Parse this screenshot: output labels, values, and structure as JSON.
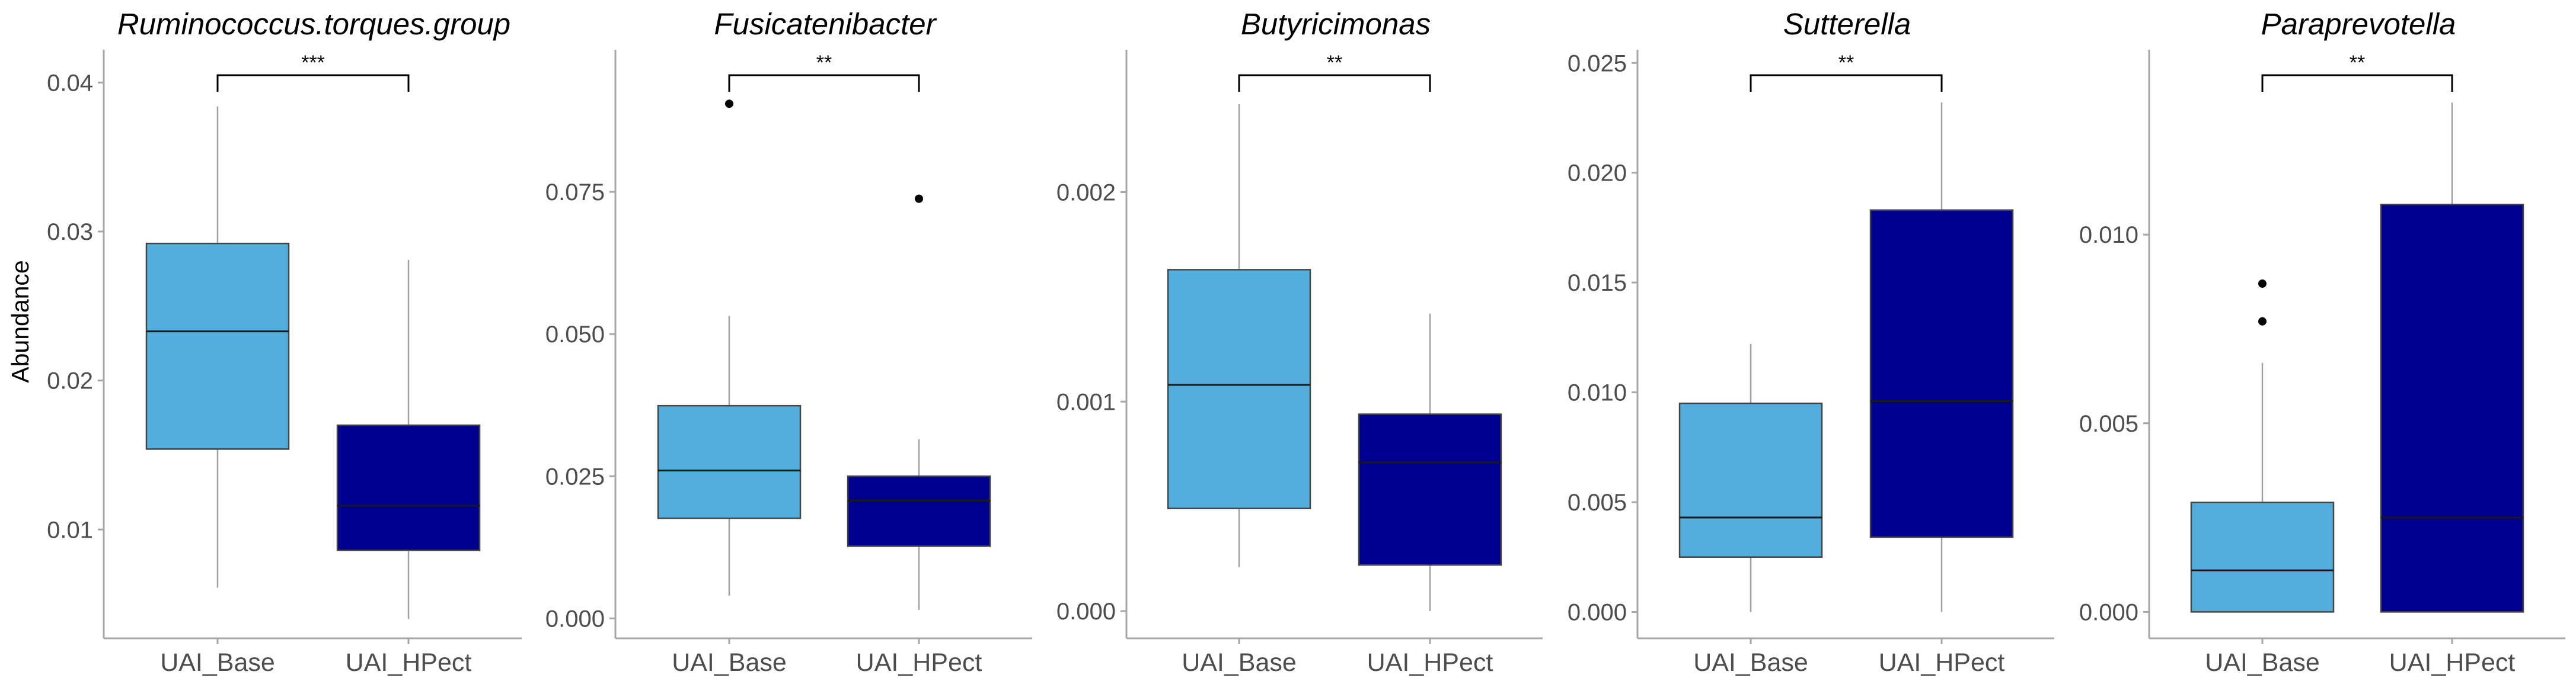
{
  "chart_data": [
    {
      "type": "boxplot",
      "title": "Ruminococcus.torques.group",
      "ylabel": "Abundance",
      "categories": [
        "UAI_Base",
        "UAI_HPect"
      ],
      "ylim": [
        0.0027,
        0.0422
      ],
      "yticks": [
        0.01,
        0.02,
        0.03,
        0.04
      ],
      "tick_labels": [
        "0.01",
        "0.02",
        "0.03",
        "0.04"
      ],
      "significance": "***",
      "colors": [
        "#52AEDC",
        "#00008F"
      ],
      "boxes": [
        {
          "name": "UAI_Base",
          "whisker_low": 0.0061,
          "q1": 0.0154,
          "median": 0.0233,
          "q3": 0.0292,
          "whisker_high": 0.0384,
          "outliers": []
        },
        {
          "name": "UAI_HPect",
          "whisker_low": 0.004,
          "q1": 0.0086,
          "median": 0.0116,
          "q3": 0.017,
          "whisker_high": 0.0281,
          "outliers": []
        }
      ]
    },
    {
      "type": "boxplot",
      "title": "Fusicatenibacter",
      "ylabel": "",
      "categories": [
        "UAI_Base",
        "UAI_HPect"
      ],
      "ylim": [
        -0.0035,
        0.1
      ],
      "yticks": [
        0.0,
        0.025,
        0.05,
        0.075
      ],
      "tick_labels": [
        "0.000",
        "0.025",
        "0.050",
        "0.075"
      ],
      "significance": "**",
      "colors": [
        "#52AEDC",
        "#00008F"
      ],
      "boxes": [
        {
          "name": "UAI_Base",
          "whisker_low": 0.004,
          "q1": 0.0176,
          "median": 0.026,
          "q3": 0.0374,
          "whisker_high": 0.0532,
          "outliers": [
            0.0905
          ]
        },
        {
          "name": "UAI_HPect",
          "whisker_low": 0.0015,
          "q1": 0.0127,
          "median": 0.0207,
          "q3": 0.025,
          "whisker_high": 0.0315,
          "outliers": [
            0.0738
          ]
        }
      ]
    },
    {
      "type": "boxplot",
      "title": "Butyricimonas",
      "ylabel": "",
      "categories": [
        "UAI_Base",
        "UAI_HPect"
      ],
      "ylim": [
        -0.00013,
        0.00268
      ],
      "yticks": [
        0.0,
        0.001,
        0.002
      ],
      "tick_labels": [
        "0.000",
        "0.001",
        "0.002"
      ],
      "significance": "**",
      "colors": [
        "#52AEDC",
        "#00008F"
      ],
      "boxes": [
        {
          "name": "UAI_Base",
          "whisker_low": 0.00021,
          "q1": 0.00049,
          "median": 0.00108,
          "q3": 0.00163,
          "whisker_high": 0.00242,
          "outliers": []
        },
        {
          "name": "UAI_HPect",
          "whisker_low": 0.0,
          "q1": 0.00022,
          "median": 0.00071,
          "q3": 0.00094,
          "whisker_high": 0.00142,
          "outliers": []
        }
      ]
    },
    {
      "type": "boxplot",
      "title": "Sutterella",
      "ylabel": "",
      "categories": [
        "UAI_Base",
        "UAI_HPect"
      ],
      "ylim": [
        -0.0012,
        0.0256
      ],
      "yticks": [
        0.0,
        0.005,
        0.01,
        0.015,
        0.02,
        0.025
      ],
      "tick_labels": [
        "0.000",
        "0.005",
        "0.010",
        "0.015",
        "0.020",
        "0.025"
      ],
      "significance": "**",
      "colors": [
        "#52AEDC",
        "#00008F"
      ],
      "boxes": [
        {
          "name": "UAI_Base",
          "whisker_low": 0.0,
          "q1": 0.0025,
          "median": 0.0043,
          "q3": 0.0095,
          "whisker_high": 0.0122,
          "outliers": []
        },
        {
          "name": "UAI_HPect",
          "whisker_low": 0.0,
          "q1": 0.0034,
          "median": 0.0096,
          "q3": 0.0183,
          "whisker_high": 0.0232,
          "outliers": []
        }
      ]
    },
    {
      "type": "boxplot",
      "title": "Paraprevotella",
      "ylabel": "",
      "categories": [
        "UAI_Base",
        "UAI_HPect"
      ],
      "ylim": [
        -0.0007,
        0.0149
      ],
      "yticks": [
        0.0,
        0.005,
        0.01
      ],
      "tick_labels": [
        "0.000",
        "0.005",
        "0.010"
      ],
      "significance": "**",
      "colors": [
        "#52AEDC",
        "#00008F"
      ],
      "boxes": [
        {
          "name": "UAI_Base",
          "whisker_low": 0.0,
          "q1": 0.0,
          "median": 0.0011,
          "q3": 0.0029,
          "whisker_high": 0.0066,
          "outliers": [
            0.0077,
            0.0087
          ]
        },
        {
          "name": "UAI_HPect",
          "whisker_low": 0.0,
          "q1": 0.0,
          "median": 0.0025,
          "q3": 0.0108,
          "whisker_high": 0.0135,
          "outliers": []
        }
      ]
    }
  ]
}
